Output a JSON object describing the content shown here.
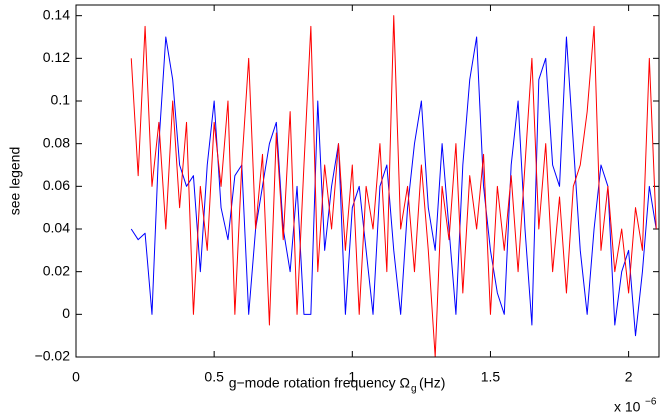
{
  "chart_data": {
    "type": "line",
    "ylabel": "see legend",
    "xlabel": "g−mode rotation frequency  Ω",
    "xlabel_sub": "g",
    "xlabel_unit": "(Hz)",
    "x_multiplier": "x 10",
    "x_exponent": "−6",
    "xlim": [
      0,
      2.11
    ],
    "xticks": [
      0,
      0.5,
      1,
      1.5,
      2
    ],
    "ylim": [
      -0.02,
      0.145
    ],
    "yticks": [
      {
        "value": -0.02,
        "label": "−0.02"
      },
      0,
      0.02,
      0.04,
      0.06,
      0.08,
      0.1,
      0.12,
      0.14
    ],
    "grid": false,
    "x": [
      0.2,
      0.225,
      0.25,
      0.275,
      0.3,
      0.325,
      0.35,
      0.375,
      0.4,
      0.425,
      0.45,
      0.475,
      0.5,
      0.525,
      0.55,
      0.575,
      0.6,
      0.625,
      0.65,
      0.675,
      0.7,
      0.725,
      0.75,
      0.775,
      0.8,
      0.825,
      0.85,
      0.875,
      0.9,
      0.925,
      0.95,
      0.975,
      1,
      1.025,
      1.05,
      1.075,
      1.1,
      1.125,
      1.15,
      1.175,
      1.2,
      1.225,
      1.25,
      1.275,
      1.3,
      1.325,
      1.35,
      1.375,
      1.4,
      1.425,
      1.45,
      1.475,
      1.5,
      1.525,
      1.55,
      1.575,
      1.6,
      1.625,
      1.65,
      1.675,
      1.7,
      1.725,
      1.75,
      1.775,
      1.8,
      1.825,
      1.85,
      1.875,
      1.9,
      1.925,
      1.95,
      1.975,
      2,
      2.025,
      2.05,
      2.075,
      2.1
    ],
    "series": [
      {
        "color": "#0000ff",
        "values": [
          0.04,
          0.035,
          0.038,
          0,
          0.08,
          0.13,
          0.11,
          0.07,
          0.06,
          0.065,
          0.02,
          0.07,
          0.1,
          0.05,
          0.035,
          0.065,
          0.07,
          0,
          0.04,
          0.06,
          0.08,
          0.09,
          0.04,
          0.02,
          0.06,
          0,
          0,
          0.1,
          0.03,
          0.06,
          0.08,
          0,
          0.05,
          0.06,
          0.03,
          0,
          0.06,
          0.07,
          0.03,
          0,
          0.05,
          0.08,
          0.1,
          0.05,
          0.03,
          0.08,
          0.04,
          0,
          0.07,
          0.11,
          0.13,
          0.06,
          0.03,
          0.01,
          0,
          0.07,
          0.1,
          0.04,
          -0.005,
          0.11,
          0.12,
          0.07,
          0.06,
          0.13,
          0.08,
          0.03,
          0,
          0.04,
          0.07,
          0.06,
          -0.005,
          0.02,
          0.03,
          -0.01,
          0.02,
          0.06,
          0.04
        ]
      },
      {
        "color": "#ff0000",
        "values": [
          0.12,
          0.065,
          0.135,
          0.06,
          0.09,
          0.04,
          0.1,
          0.05,
          0.09,
          0,
          0.06,
          0.03,
          0.09,
          0.06,
          0.1,
          0,
          0.07,
          0.12,
          0.04,
          0.075,
          -0.005,
          0.085,
          0.035,
          0.095,
          0,
          0.07,
          0.135,
          0.02,
          0.07,
          0.04,
          0.08,
          0.03,
          0.07,
          0,
          0.06,
          0.04,
          0.08,
          0.02,
          0.14,
          0.04,
          0.06,
          0.02,
          0.07,
          0.03,
          -0.02,
          0.06,
          0.035,
          0.08,
          0.01,
          0.065,
          0.04,
          0.075,
          0,
          0.06,
          0.03,
          0.065,
          0.02,
          0.07,
          0.12,
          0.04,
          0.08,
          0.02,
          0.055,
          0.01,
          0.06,
          0.07,
          0.095,
          0.135,
          0.03,
          0.06,
          0.02,
          0.04,
          0.01,
          0.05,
          0.03,
          0.12,
          0.04
        ]
      }
    ]
  }
}
